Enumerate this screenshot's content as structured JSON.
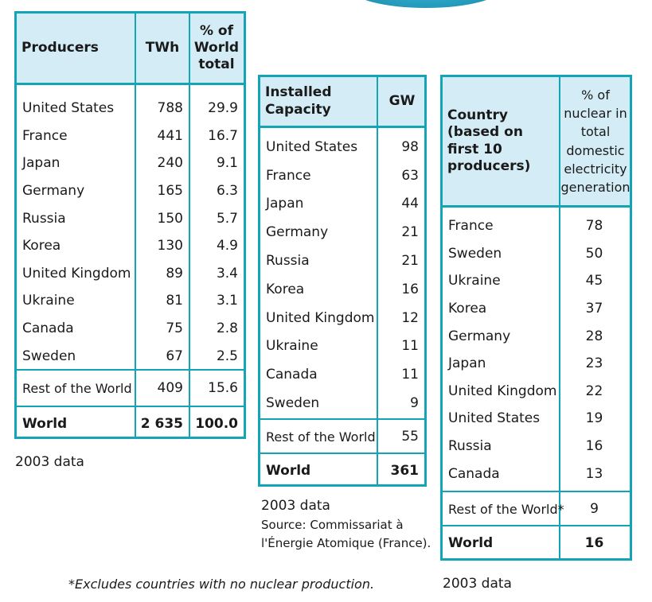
{
  "table1": {
    "headers": [
      "Producers",
      "TWh",
      "% of World total"
    ],
    "rows": [
      [
        "United States",
        "788",
        "29.9"
      ],
      [
        "France",
        "441",
        "16.7"
      ],
      [
        "Japan",
        "240",
        "9.1"
      ],
      [
        "Germany",
        "165",
        "6.3"
      ],
      [
        "Russia",
        "150",
        "5.7"
      ],
      [
        "Korea",
        "130",
        "4.9"
      ],
      [
        "United Kingdom",
        "89",
        "3.4"
      ],
      [
        "Ukraine",
        "81",
        "3.1"
      ],
      [
        "Canada",
        "75",
        "2.8"
      ],
      [
        "Sweden",
        "67",
        "2.5"
      ]
    ],
    "rest": [
      "Rest of the World",
      "409",
      "15.6"
    ],
    "world": [
      "World",
      "2 635",
      "100.0"
    ],
    "note": "2003 data"
  },
  "table2": {
    "headers": [
      "Installed Capacity",
      "GW"
    ],
    "rows": [
      [
        "United States",
        "98"
      ],
      [
        "France",
        "63"
      ],
      [
        "Japan",
        "44"
      ],
      [
        "Germany",
        "21"
      ],
      [
        "Russia",
        "21"
      ],
      [
        "Korea",
        "16"
      ],
      [
        "United Kingdom",
        "12"
      ],
      [
        "Ukraine",
        "11"
      ],
      [
        "Canada",
        "11"
      ],
      [
        "Sweden",
        "9"
      ]
    ],
    "rest": [
      "Rest of the World",
      "55"
    ],
    "world": [
      "World",
      "361"
    ],
    "note": "2003 data",
    "source_line1": "Source: Commissariat à",
    "source_line2": "l'Énergie Atomique (France)."
  },
  "table3": {
    "headers": [
      "Country (based on first 10 producers)",
      "% of nuclear in total domestic electricity generation"
    ],
    "rows": [
      [
        "France",
        "78"
      ],
      [
        "Sweden",
        "50"
      ],
      [
        "Ukraine",
        "45"
      ],
      [
        "Korea",
        "37"
      ],
      [
        "Germany",
        "28"
      ],
      [
        "Japan",
        "23"
      ],
      [
        "United Kingdom",
        "22"
      ],
      [
        "United States",
        "19"
      ],
      [
        "Russia",
        "16"
      ],
      [
        "Canada",
        "13"
      ]
    ],
    "rest": [
      "Rest of the World*",
      "9"
    ],
    "world": [
      "World",
      "16"
    ],
    "note": "2003 data"
  },
  "footnote": "*Excludes countries with no nuclear production."
}
